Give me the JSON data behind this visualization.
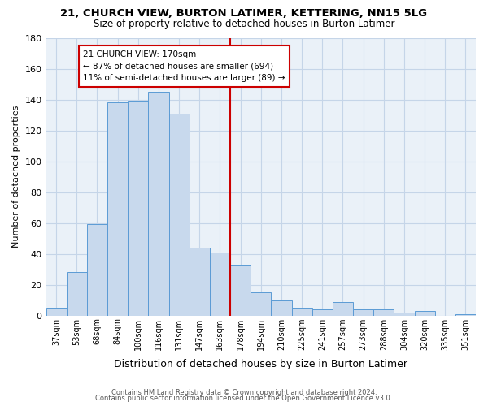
{
  "title": "21, CHURCH VIEW, BURTON LATIMER, KETTERING, NN15 5LG",
  "subtitle": "Size of property relative to detached houses in Burton Latimer",
  "xlabel": "Distribution of detached houses by size in Burton Latimer",
  "ylabel": "Number of detached properties",
  "bar_labels": [
    "37sqm",
    "53sqm",
    "68sqm",
    "84sqm",
    "100sqm",
    "116sqm",
    "131sqm",
    "147sqm",
    "163sqm",
    "178sqm",
    "194sqm",
    "210sqm",
    "225sqm",
    "241sqm",
    "257sqm",
    "273sqm",
    "288sqm",
    "304sqm",
    "320sqm",
    "335sqm",
    "351sqm"
  ],
  "bar_values": [
    5,
    28,
    59,
    138,
    139,
    145,
    131,
    44,
    41,
    33,
    15,
    10,
    5,
    4,
    9,
    4,
    4,
    2,
    3,
    0,
    1
  ],
  "bar_color": "#c8d9ed",
  "bar_edge_color": "#5b9bd5",
  "ylim": [
    0,
    180
  ],
  "yticks": [
    0,
    20,
    40,
    60,
    80,
    100,
    120,
    140,
    160,
    180
  ],
  "vline_x_idx": 8.5,
  "vline_color": "#cc0000",
  "annotation_title": "21 CHURCH VIEW: 170sqm",
  "annotation_line1": "← 87% of detached houses are smaller (694)",
  "annotation_line2": "11% of semi-detached houses are larger (89) →",
  "annotation_box_color": "#ffffff",
  "annotation_box_edge": "#cc0000",
  "footer_line1": "Contains HM Land Registry data © Crown copyright and database right 2024.",
  "footer_line2": "Contains public sector information licensed under the Open Government Licence v3.0.",
  "background_color": "#ffffff",
  "plot_bg_color": "#eaf1f8",
  "grid_color": "#c5d5e8"
}
